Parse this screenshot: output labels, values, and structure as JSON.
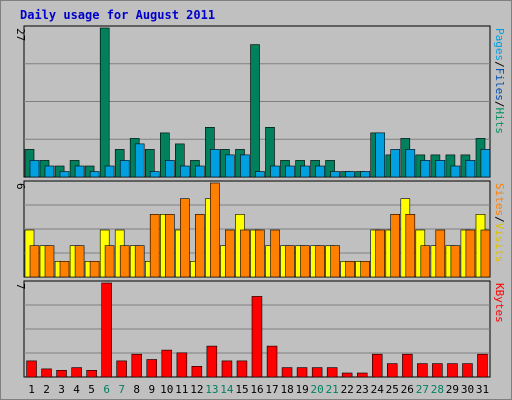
{
  "chart_data": {
    "type": "bar",
    "title": "Daily usage for August 2011",
    "categories": [
      "1",
      "2",
      "3",
      "4",
      "5",
      "6",
      "7",
      "8",
      "9",
      "10",
      "11",
      "12",
      "13",
      "14",
      "15",
      "16",
      "17",
      "18",
      "19",
      "20",
      "21",
      "22",
      "23",
      "24",
      "25",
      "26",
      "27",
      "28",
      "29",
      "30",
      "31"
    ],
    "weekend_days": [
      "6",
      "7",
      "13",
      "14",
      "20",
      "21",
      "27",
      "28"
    ],
    "panels": [
      {
        "name": "top",
        "scale_label": "27",
        "ylim": [
          0,
          27
        ],
        "series": [
          {
            "name": "Hits",
            "color": "#00805c",
            "values": [
              5,
              3,
              2,
              3,
              2,
              27,
              5,
              7,
              5,
              8,
              6,
              3,
              9,
              5,
              5,
              24,
              9,
              3,
              3,
              3,
              3,
              1,
              1,
              8,
              4,
              7,
              4,
              4,
              4,
              4,
              7
            ]
          },
          {
            "name": "Files",
            "color": "#00a0e0",
            "values": [
              3,
              2,
              1,
              2,
              1,
              2,
              3,
              6,
              1,
              3,
              2,
              2,
              5,
              4,
              4,
              1,
              2,
              2,
              2,
              2,
              1,
              1,
              1,
              8,
              5,
              5,
              3,
              3,
              2,
              3,
              5
            ]
          },
          {
            "name": "Pages",
            "color": "#00c0f0",
            "values": []
          }
        ],
        "legend": [
          {
            "text": "Pages",
            "color": "#00a0e0"
          },
          {
            "text": "/",
            "color": "#000000"
          },
          {
            "text": "Files",
            "color": "#0050b0"
          },
          {
            "text": "/",
            "color": "#000000"
          },
          {
            "text": "Hits",
            "color": "#009060"
          }
        ]
      },
      {
        "name": "middle",
        "scale_label": "6",
        "ylim": [
          0,
          6
        ],
        "series": [
          {
            "name": "Visits",
            "color": "#ffff00",
            "values": [
              3,
              2,
              1,
              2,
              1,
              3,
              3,
              2,
              1,
              4,
              3,
              1,
              5,
              2,
              4,
              3,
              2,
              2,
              2,
              2,
              2,
              1,
              1,
              3,
              3,
              5,
              3,
              2,
              2,
              3,
              4
            ]
          },
          {
            "name": "Sites",
            "color": "#ff8000",
            "values": [
              2,
              2,
              1,
              2,
              1,
              2,
              2,
              2,
              4,
              4,
              5,
              4,
              6,
              3,
              3,
              3,
              3,
              2,
              2,
              2,
              2,
              1,
              1,
              3,
              4,
              4,
              2,
              3,
              2,
              3,
              3
            ]
          }
        ],
        "legend": [
          {
            "text": "Sites",
            "color": "#ff8000"
          },
          {
            "text": "/",
            "color": "#000000"
          },
          {
            "text": "Visits",
            "color": "#e0c000"
          }
        ]
      },
      {
        "name": "bottom",
        "scale_label": "7",
        "ylim": [
          0,
          7
        ],
        "series": [
          {
            "name": "KBytes",
            "color": "#ff0000",
            "values": [
              1.2,
              0.6,
              0.5,
              0.7,
              0.5,
              7,
              1.2,
              1.7,
              1.3,
              2,
              1.8,
              0.8,
              2.3,
              1.2,
              1.2,
              6,
              2.3,
              0.7,
              0.7,
              0.7,
              0.7,
              0.3,
              0.3,
              1.7,
              1,
              1.7,
              1,
              1,
              1,
              1,
              1.7
            ]
          }
        ],
        "legend": [
          {
            "text": "KBytes",
            "color": "#ff0000"
          }
        ]
      }
    ],
    "grid": true
  }
}
